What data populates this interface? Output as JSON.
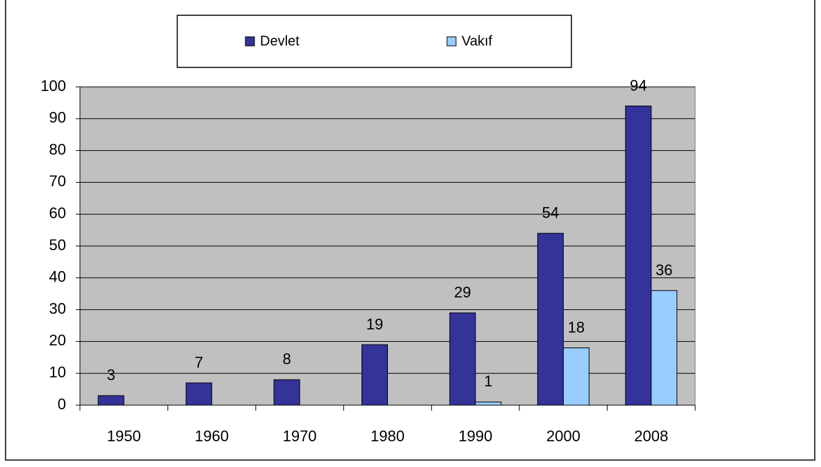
{
  "chart_data": {
    "type": "bar",
    "categories": [
      "1950",
      "1960",
      "1970",
      "1980",
      "1990",
      "2000",
      "2008"
    ],
    "series": [
      {
        "name": "Devlet",
        "color": "#333399",
        "values": [
          3,
          7,
          8,
          19,
          29,
          54,
          94
        ]
      },
      {
        "name": "Vakıf",
        "color": "#99ccff",
        "values": [
          null,
          null,
          null,
          null,
          1,
          18,
          36
        ]
      }
    ],
    "ylim": [
      0,
      100
    ],
    "yticks": [
      0,
      10,
      20,
      30,
      40,
      50,
      60,
      70,
      80,
      90,
      100
    ],
    "grid": true,
    "legend": "top"
  }
}
